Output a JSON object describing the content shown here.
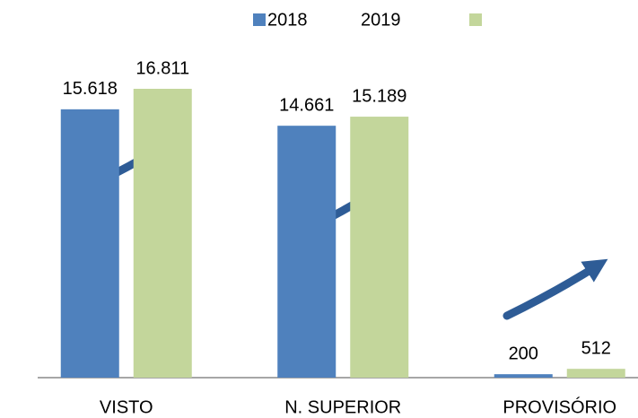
{
  "chart_data": {
    "type": "bar",
    "categories": [
      "VISTO",
      "N. SUPERIOR",
      "PROVISÓRIO"
    ],
    "series": [
      {
        "name": "2018",
        "color": "#4f81bd",
        "values": [
          15618,
          14661,
          200
        ],
        "value_labels": [
          "15.618",
          "14.661",
          "200"
        ]
      },
      {
        "name": "2019",
        "color": "#c3d69b",
        "values": [
          16811,
          15189,
          512
        ],
        "value_labels": [
          "16.811",
          "15.189",
          "512"
        ]
      }
    ]
  }
}
